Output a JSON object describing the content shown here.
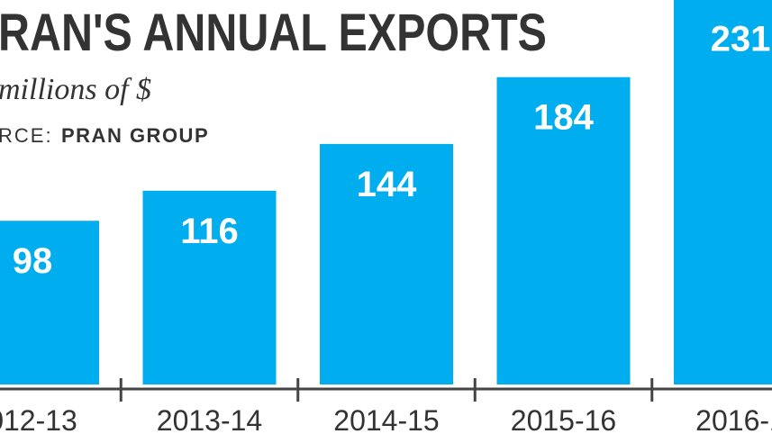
{
  "chart_data": {
    "type": "bar",
    "title": "RAN'S ANNUAL EXPORTS",
    "subtitle": "millions of $",
    "source_label": "RCE:",
    "source": "PRAN GROUP",
    "categories": [
      "012-13",
      "2013-14",
      "2014-15",
      "2015-16",
      "2016-1"
    ],
    "values": [
      98,
      116,
      144,
      184,
      231
    ],
    "color": "#00aeef"
  }
}
